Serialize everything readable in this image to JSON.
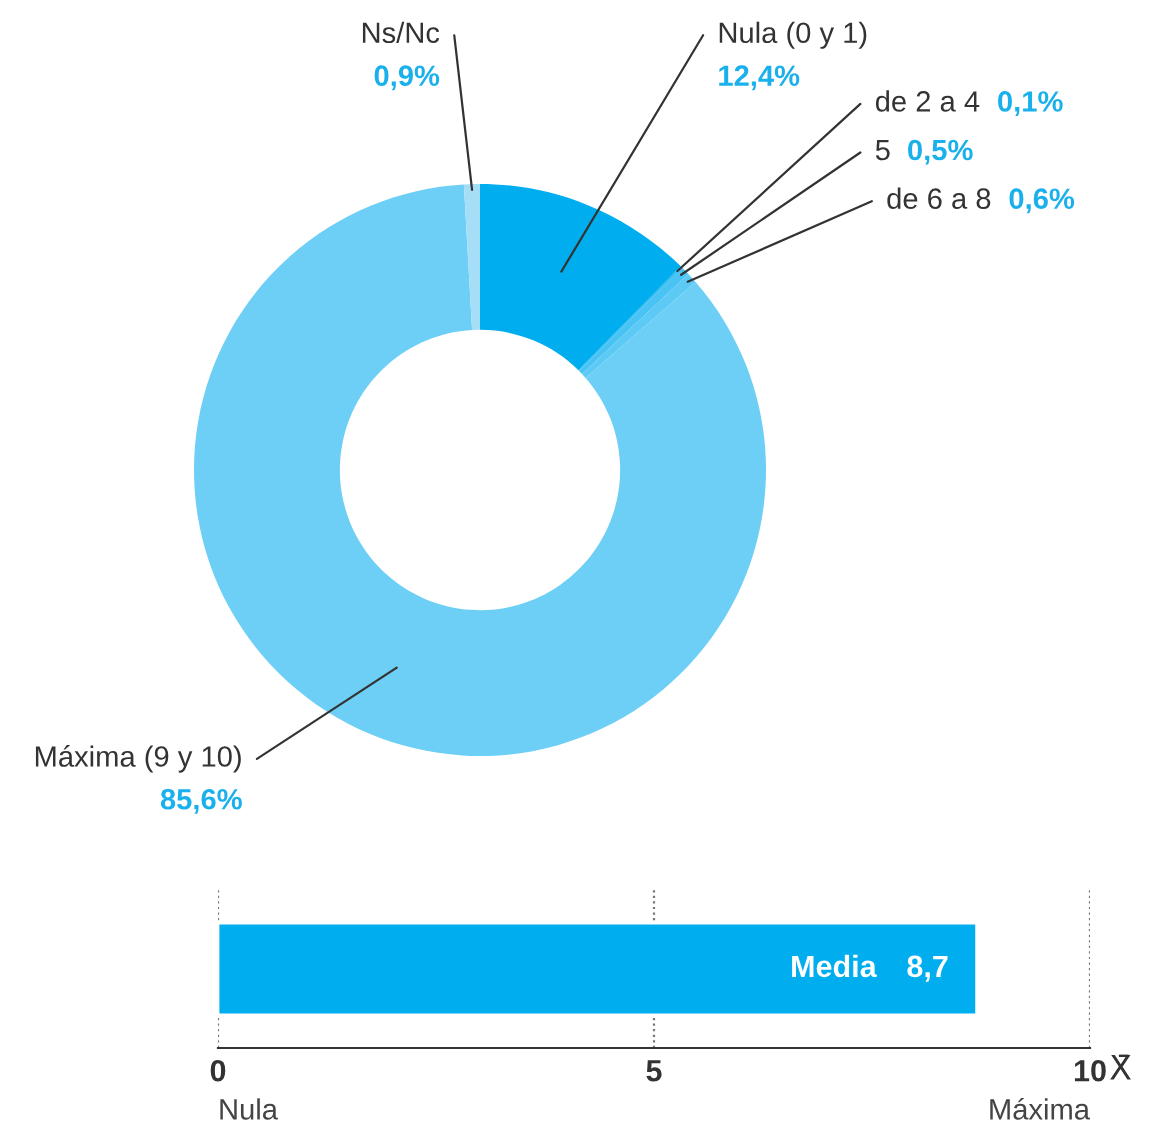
{
  "chart_data": [
    {
      "type": "donut",
      "categories": [
        "Nula (0 y 1)",
        "de 2 a 4",
        "5",
        "de 6 a 8",
        "Máxima (9 y 10)",
        "Ns/Nc"
      ],
      "values": [
        12.4,
        0.1,
        0.5,
        0.6,
        85.6,
        0.9
      ],
      "value_labels": [
        "12,4%",
        "0,1%",
        "0,5%",
        "0,6%",
        "85,6%",
        "0,9%"
      ],
      "colors": [
        "#00aeef",
        "#2ab9f1",
        "#48c3f3",
        "#5ccaf5",
        "#6dcff6",
        "#a6def8"
      ]
    },
    {
      "type": "bar",
      "orientation": "horizontal",
      "categories": [
        "Media"
      ],
      "values": [
        8.7
      ],
      "value_labels": [
        "8,7"
      ],
      "color": "#00aeef",
      "xlim": [
        0,
        10
      ],
      "xticks": [
        0,
        5,
        10
      ],
      "grid": "x",
      "xlabel": "X̄",
      "annotations": [
        "Nula",
        "Máxima"
      ]
    }
  ]
}
